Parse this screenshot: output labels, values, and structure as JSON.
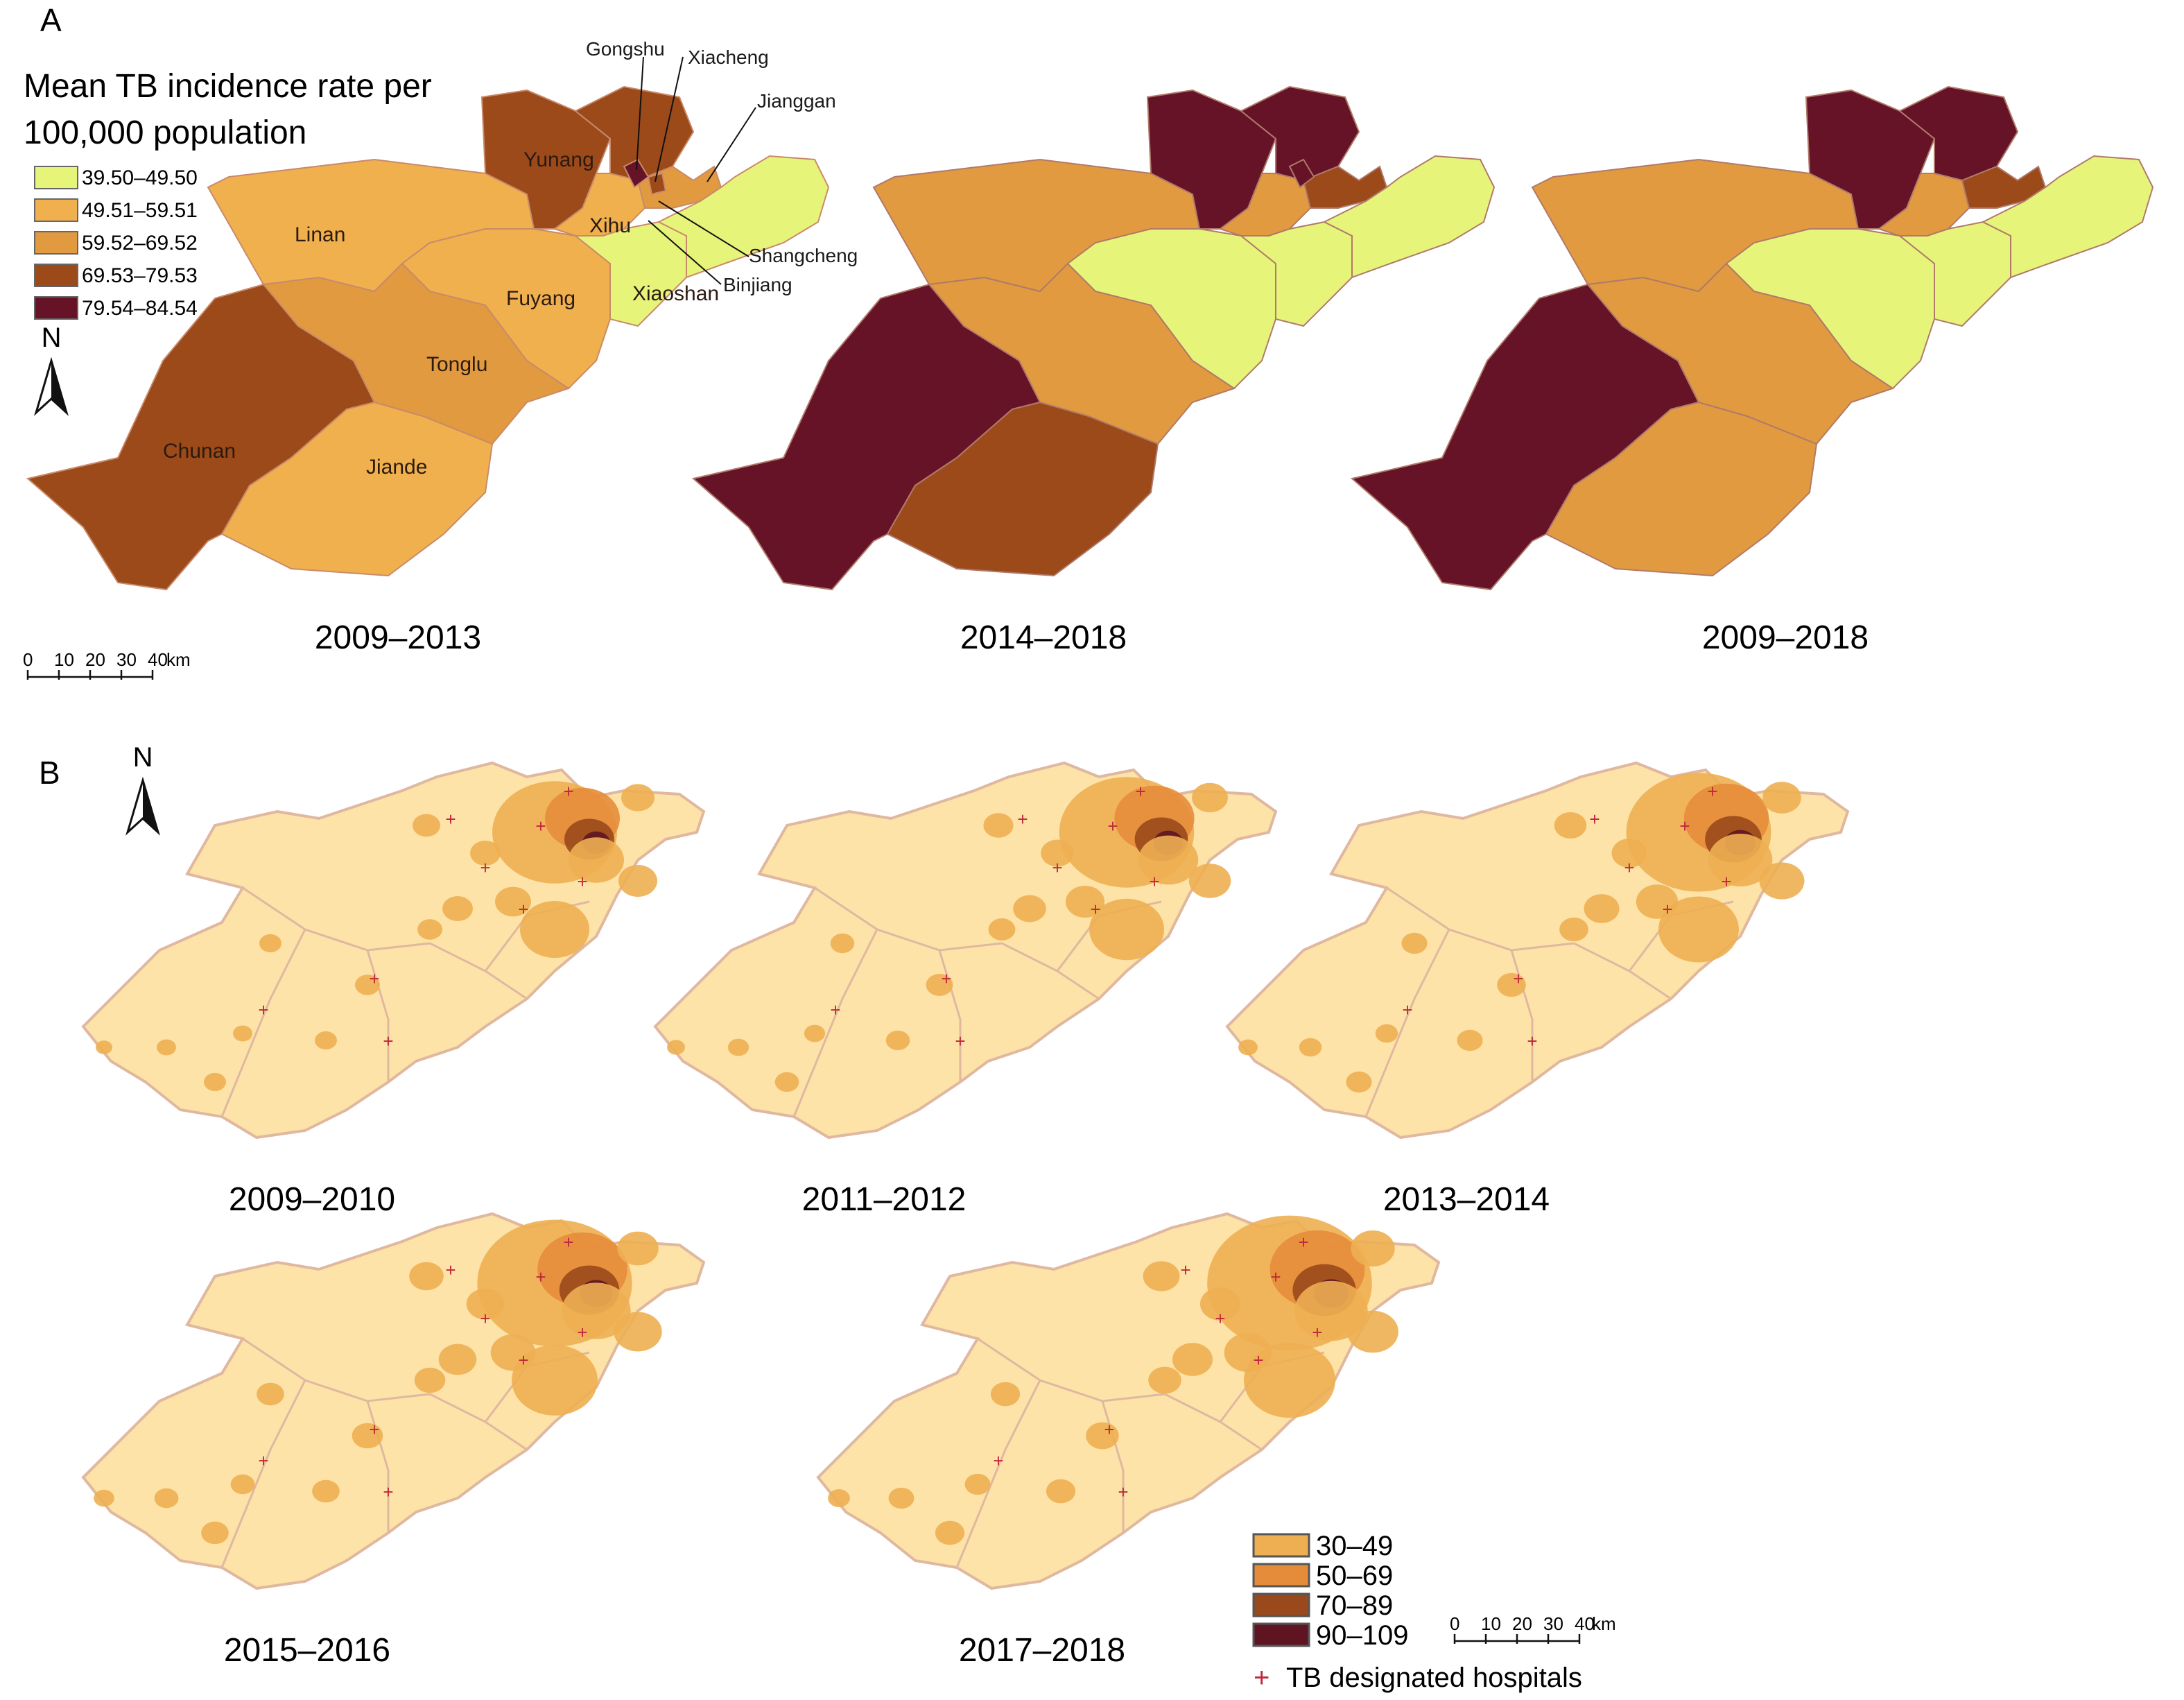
{
  "panel_a": {
    "letter": "A",
    "legend_title_line1": "Mean TB incidence rate per",
    "legend_title_line2": "100,000 population",
    "legend": [
      {
        "label": "39.50–49.50",
        "color": "#e6f57a"
      },
      {
        "label": "49.51–59.51",
        "color": "#f0b04e"
      },
      {
        "label": "59.52–69.52",
        "color": "#e19a3f"
      },
      {
        "label": "69.53–79.53",
        "color": "#9c4a1a"
      },
      {
        "label": "79.54–84.54",
        "color": "#661328"
      }
    ],
    "north": "N",
    "scale": {
      "ticks": [
        "0",
        "10",
        "20",
        "30",
        "40"
      ],
      "unit": "km"
    },
    "counties": {
      "yunang": "Yunang",
      "linan": "Linan",
      "fuyang": "Fuyang",
      "tonglu": "Tonglu",
      "chunan": "Chunan",
      "jiande": "Jiande",
      "xihu": "Xihu",
      "xiaoshan": "Xiaoshan",
      "gongshu": "Gongshu",
      "xiacheng": "Xiacheng",
      "jianggan": "Jianggan",
      "shangcheng": "Shangcheng",
      "binjiang": "Binjiang"
    },
    "maps": [
      {
        "caption": "2009–2013"
      },
      {
        "caption": "2014–2018"
      },
      {
        "caption": "2009–2018"
      }
    ]
  },
  "panel_b": {
    "letter": "B",
    "north": "N",
    "legend": [
      {
        "label": "30–49",
        "color": "#eeaf52"
      },
      {
        "label": "50–69",
        "color": "#e58c3a"
      },
      {
        "label": "70–89",
        "color": "#99491b"
      },
      {
        "label": "90–109",
        "color": "#5e1521"
      }
    ],
    "hospital_label": "TB designated hospitals",
    "hospital_marker": "+",
    "hospital_color": "#c0283c",
    "background_color": "#fde3a8",
    "scale": {
      "ticks": [
        "0",
        "10",
        "20",
        "30",
        "40"
      ],
      "unit": "km"
    },
    "maps": [
      {
        "caption": "2009–2010"
      },
      {
        "caption": "2011–2012"
      },
      {
        "caption": "2013–2014"
      },
      {
        "caption": "2015–2016"
      },
      {
        "caption": "2017–2018"
      }
    ]
  }
}
